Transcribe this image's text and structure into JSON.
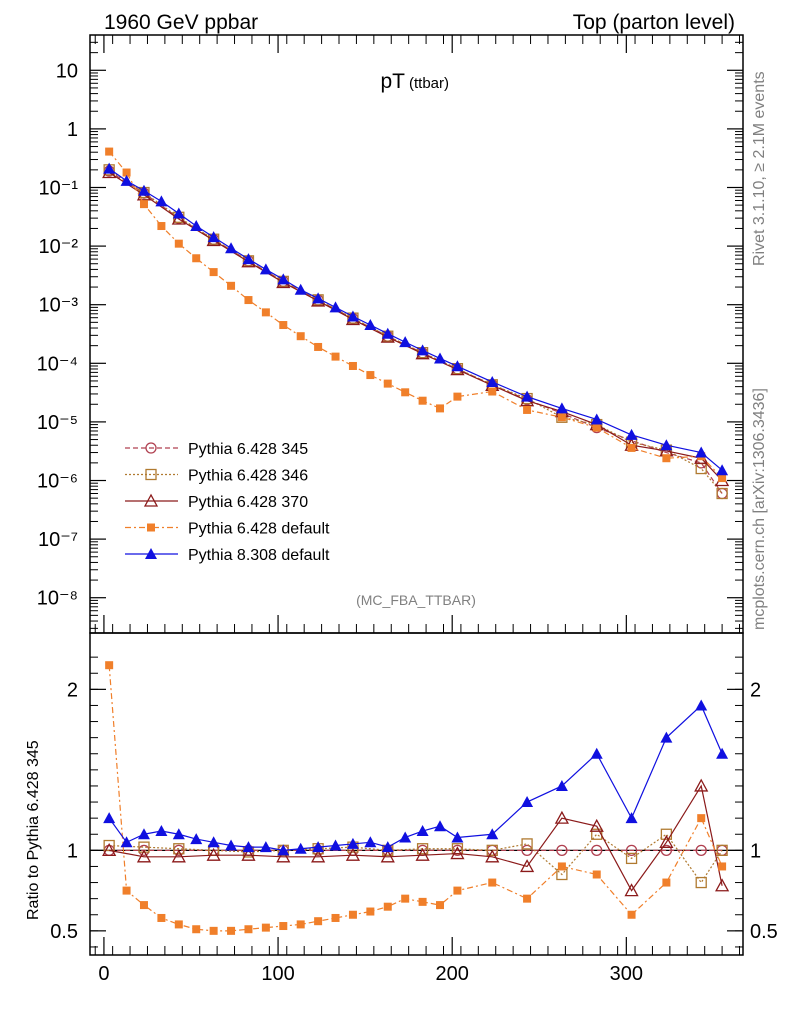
{
  "header": {
    "left": "1960 GeV ppbar",
    "right": "Top (parton level)"
  },
  "side": {
    "rivet": "Rivet 3.1.10, ≥ 2.1M events",
    "mcplots": "mcplots.cern.ch [arXiv:1306.3436]"
  },
  "chart_data": {
    "type": "line",
    "title": "pT",
    "subtitle": "(ttbar)",
    "analysis": "(MC_FBA_TTBAR)",
    "xlabel": "",
    "xlim": [
      -8,
      367
    ],
    "xticks": [
      "0",
      "100",
      "200",
      "300"
    ],
    "upper": {
      "ylabel": "",
      "yscale": "log",
      "ylim": [
        2.5e-09,
        40
      ],
      "yticks": [
        "10",
        "1",
        "10⁻¹",
        "10⁻²",
        "10⁻³",
        "10⁻⁴",
        "10⁻⁵",
        "10⁻⁶",
        "10⁻⁷",
        "10⁻⁸"
      ]
    },
    "lower": {
      "ylabel": "Ratio to Pythia 6.428 345",
      "ylim": [
        0.35,
        2.35
      ],
      "yticks": [
        "0.5",
        "1",
        "2"
      ]
    },
    "legend_position": "lower-left",
    "series": [
      {
        "name": "Pythia 6.428 345",
        "color": "#b04050",
        "marker": "open-circle",
        "x": [
          3,
          23,
          43,
          63,
          83,
          103,
          123,
          143,
          163,
          183,
          203,
          223,
          243,
          263,
          283,
          303,
          323,
          343,
          355
        ],
        "y": [
          0.19,
          0.08,
          0.03,
          0.013,
          0.0056,
          0.0025,
          0.0012,
          0.00058,
          0.00029,
          0.00015,
          8e-05,
          4.3e-05,
          2.4e-05,
          1.4e-05,
          8e-06,
          4.8e-06,
          3e-06,
          2e-06,
          6e-07
        ],
        "ratio": [
          1,
          1,
          1,
          1,
          1,
          1,
          1,
          1,
          1,
          1,
          1,
          1,
          1,
          1,
          1,
          1,
          1,
          1,
          1
        ]
      },
      {
        "name": "Pythia 6.428 346",
        "color": "#b07a30",
        "marker": "open-square",
        "x": [
          3,
          23,
          43,
          63,
          83,
          103,
          123,
          143,
          163,
          183,
          203,
          223,
          243,
          263,
          283,
          303,
          323,
          343,
          355
        ],
        "y": [
          0.2,
          0.082,
          0.031,
          0.0131,
          0.0056,
          0.0025,
          0.00121,
          0.00059,
          0.00029,
          0.000152,
          8.1e-05,
          4.3e-05,
          2.5e-05,
          1.2e-05,
          9e-06,
          4.5e-06,
          3.3e-06,
          1.6e-06,
          6e-07
        ],
        "ratio": [
          1.03,
          1.02,
          1.01,
          1.0,
          0.99,
          1.0,
          1.01,
          1.02,
          1.0,
          1.01,
          1.01,
          1.0,
          1.04,
          0.85,
          1.1,
          0.95,
          1.1,
          0.8,
          1.0
        ]
      },
      {
        "name": "Pythia 6.428 370",
        "color": "#8b1a1a",
        "marker": "open-triangle",
        "x": [
          3,
          23,
          43,
          63,
          83,
          103,
          123,
          143,
          163,
          183,
          203,
          223,
          243,
          263,
          283,
          303,
          323,
          343,
          355
        ],
        "y": [
          0.18,
          0.075,
          0.029,
          0.0125,
          0.0054,
          0.0024,
          0.00116,
          0.00056,
          0.00028,
          0.000146,
          7.8e-05,
          4.2e-05,
          2.3e-05,
          1.5e-05,
          9e-06,
          4e-06,
          3.2e-06,
          2.4e-06,
          1e-06
        ],
        "ratio": [
          1.0,
          0.96,
          0.96,
          0.97,
          0.97,
          0.96,
          0.96,
          0.97,
          0.96,
          0.97,
          0.98,
          0.96,
          0.9,
          1.2,
          1.15,
          0.75,
          1.05,
          1.4,
          0.78
        ]
      },
      {
        "name": "Pythia 6.428 default",
        "color": "#f07f2a",
        "marker": "filled-square",
        "x": [
          3,
          13,
          23,
          33,
          43,
          53,
          63,
          73,
          83,
          93,
          103,
          113,
          123,
          133,
          143,
          153,
          163,
          173,
          183,
          193,
          203,
          223,
          243,
          263,
          283,
          303,
          323,
          343,
          355
        ],
        "y": [
          0.41,
          0.18,
          0.052,
          0.022,
          0.011,
          0.0062,
          0.0036,
          0.0021,
          0.0012,
          0.00074,
          0.00045,
          0.00029,
          0.00019,
          0.00013,
          9e-05,
          6.3e-05,
          4.5e-05,
          3.2e-05,
          2.3e-05,
          1.7e-05,
          2.7e-05,
          3.3e-05,
          1.6e-05,
          1.2e-05,
          8e-06,
          3.6e-06,
          2.4e-06,
          2.6e-06,
          1.1e-06
        ],
        "ratio": [
          2.15,
          0.75,
          0.66,
          0.58,
          0.54,
          0.51,
          0.5,
          0.5,
          0.51,
          0.52,
          0.53,
          0.54,
          0.56,
          0.58,
          0.6,
          0.62,
          0.65,
          0.7,
          0.68,
          0.66,
          0.75,
          0.8,
          0.7,
          0.9,
          0.85,
          0.6,
          0.8,
          1.2,
          0.9
        ]
      },
      {
        "name": "Pythia 8.308 default",
        "color": "#1010e0",
        "marker": "filled-triangle",
        "x": [
          3,
          13,
          23,
          33,
          43,
          53,
          63,
          73,
          83,
          93,
          103,
          113,
          123,
          133,
          143,
          153,
          163,
          173,
          183,
          193,
          203,
          223,
          243,
          263,
          283,
          303,
          323,
          343,
          355
        ],
        "y": [
          0.21,
          0.13,
          0.088,
          0.058,
          0.036,
          0.022,
          0.0142,
          0.0092,
          0.006,
          0.004,
          0.0027,
          0.0018,
          0.00128,
          0.0009,
          0.00063,
          0.00045,
          0.00032,
          0.00023,
          0.000166,
          0.000121,
          8.9e-05,
          4.8e-05,
          2.7e-05,
          1.7e-05,
          1.1e-05,
          6e-06,
          4e-06,
          3e-06,
          1.5e-06
        ],
        "ratio": [
          1.2,
          1.05,
          1.1,
          1.12,
          1.1,
          1.07,
          1.05,
          1.03,
          1.02,
          1.02,
          1.0,
          1.01,
          1.02,
          1.03,
          1.04,
          1.05,
          1.02,
          1.08,
          1.12,
          1.15,
          1.08,
          1.1,
          1.3,
          1.4,
          1.6,
          1.2,
          1.7,
          1.9,
          1.6
        ]
      }
    ]
  }
}
